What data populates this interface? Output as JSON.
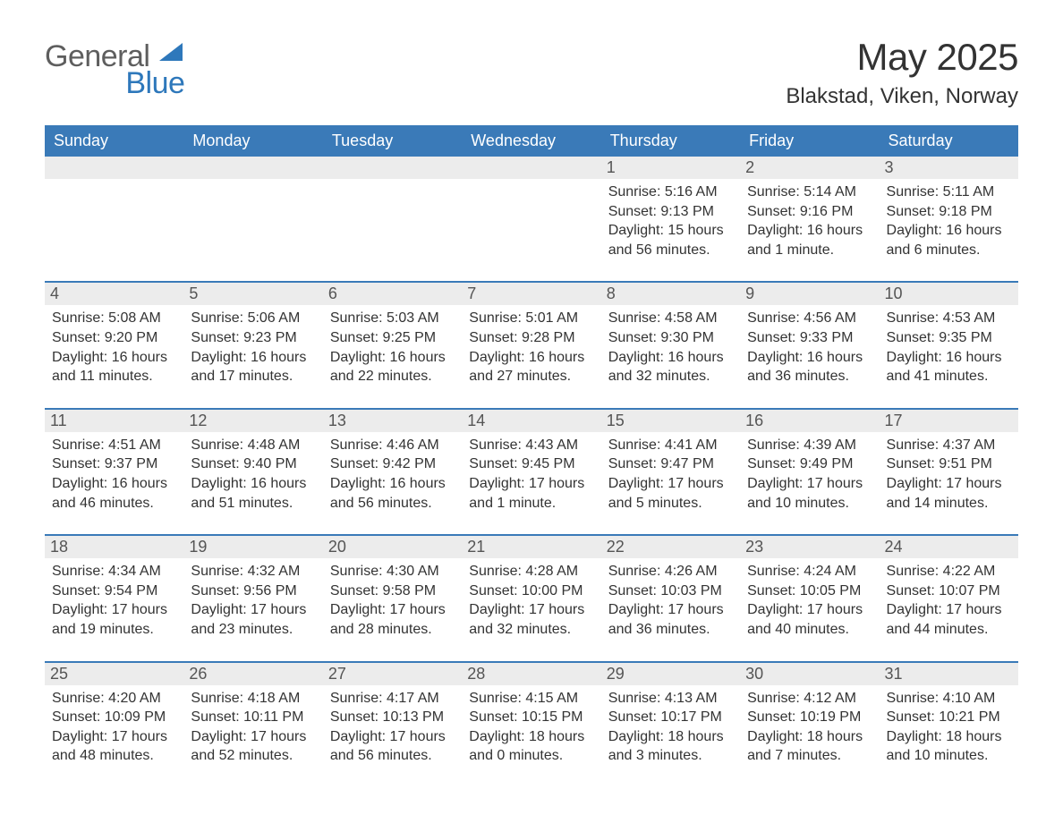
{
  "brand": {
    "word1": "General",
    "word2": "Blue",
    "text_color_general": "#5e5e5e",
    "text_color_blue": "#2e78bb",
    "mark_color": "#2e78bb"
  },
  "title": "May 2025",
  "location": "Blakstad, Viken, Norway",
  "colors": {
    "header_bg": "#3a7ab8",
    "header_text": "#ffffff",
    "daynum_bg": "#ececec",
    "daynum_text": "#555555",
    "body_text": "#333333",
    "week_separator": "#3a7ab8",
    "page_bg": "#ffffff"
  },
  "typography": {
    "month_title_fontsize": 42,
    "location_fontsize": 24,
    "weekday_fontsize": 18,
    "daynum_fontsize": 18,
    "body_fontsize": 16
  },
  "weekdays": [
    "Sunday",
    "Monday",
    "Tuesday",
    "Wednesday",
    "Thursday",
    "Friday",
    "Saturday"
  ],
  "weeks": [
    [
      {
        "empty": true
      },
      {
        "empty": true
      },
      {
        "empty": true
      },
      {
        "empty": true
      },
      {
        "day": "1",
        "lines": [
          "Sunrise: 5:16 AM",
          "Sunset: 9:13 PM",
          "Daylight: 15 hours and 56 minutes."
        ]
      },
      {
        "day": "2",
        "lines": [
          "Sunrise: 5:14 AM",
          "Sunset: 9:16 PM",
          "Daylight: 16 hours and 1 minute."
        ]
      },
      {
        "day": "3",
        "lines": [
          "Sunrise: 5:11 AM",
          "Sunset: 9:18 PM",
          "Daylight: 16 hours and 6 minutes."
        ]
      }
    ],
    [
      {
        "day": "4",
        "lines": [
          "Sunrise: 5:08 AM",
          "Sunset: 9:20 PM",
          "Daylight: 16 hours and 11 minutes."
        ]
      },
      {
        "day": "5",
        "lines": [
          "Sunrise: 5:06 AM",
          "Sunset: 9:23 PM",
          "Daylight: 16 hours and 17 minutes."
        ]
      },
      {
        "day": "6",
        "lines": [
          "Sunrise: 5:03 AM",
          "Sunset: 9:25 PM",
          "Daylight: 16 hours and 22 minutes."
        ]
      },
      {
        "day": "7",
        "lines": [
          "Sunrise: 5:01 AM",
          "Sunset: 9:28 PM",
          "Daylight: 16 hours and 27 minutes."
        ]
      },
      {
        "day": "8",
        "lines": [
          "Sunrise: 4:58 AM",
          "Sunset: 9:30 PM",
          "Daylight: 16 hours and 32 minutes."
        ]
      },
      {
        "day": "9",
        "lines": [
          "Sunrise: 4:56 AM",
          "Sunset: 9:33 PM",
          "Daylight: 16 hours and 36 minutes."
        ]
      },
      {
        "day": "10",
        "lines": [
          "Sunrise: 4:53 AM",
          "Sunset: 9:35 PM",
          "Daylight: 16 hours and 41 minutes."
        ]
      }
    ],
    [
      {
        "day": "11",
        "lines": [
          "Sunrise: 4:51 AM",
          "Sunset: 9:37 PM",
          "Daylight: 16 hours and 46 minutes."
        ]
      },
      {
        "day": "12",
        "lines": [
          "Sunrise: 4:48 AM",
          "Sunset: 9:40 PM",
          "Daylight: 16 hours and 51 minutes."
        ]
      },
      {
        "day": "13",
        "lines": [
          "Sunrise: 4:46 AM",
          "Sunset: 9:42 PM",
          "Daylight: 16 hours and 56 minutes."
        ]
      },
      {
        "day": "14",
        "lines": [
          "Sunrise: 4:43 AM",
          "Sunset: 9:45 PM",
          "Daylight: 17 hours and 1 minute."
        ]
      },
      {
        "day": "15",
        "lines": [
          "Sunrise: 4:41 AM",
          "Sunset: 9:47 PM",
          "Daylight: 17 hours and 5 minutes."
        ]
      },
      {
        "day": "16",
        "lines": [
          "Sunrise: 4:39 AM",
          "Sunset: 9:49 PM",
          "Daylight: 17 hours and 10 minutes."
        ]
      },
      {
        "day": "17",
        "lines": [
          "Sunrise: 4:37 AM",
          "Sunset: 9:51 PM",
          "Daylight: 17 hours and 14 minutes."
        ]
      }
    ],
    [
      {
        "day": "18",
        "lines": [
          "Sunrise: 4:34 AM",
          "Sunset: 9:54 PM",
          "Daylight: 17 hours and 19 minutes."
        ]
      },
      {
        "day": "19",
        "lines": [
          "Sunrise: 4:32 AM",
          "Sunset: 9:56 PM",
          "Daylight: 17 hours and 23 minutes."
        ]
      },
      {
        "day": "20",
        "lines": [
          "Sunrise: 4:30 AM",
          "Sunset: 9:58 PM",
          "Daylight: 17 hours and 28 minutes."
        ]
      },
      {
        "day": "21",
        "lines": [
          "Sunrise: 4:28 AM",
          "Sunset: 10:00 PM",
          "Daylight: 17 hours and 32 minutes."
        ]
      },
      {
        "day": "22",
        "lines": [
          "Sunrise: 4:26 AM",
          "Sunset: 10:03 PM",
          "Daylight: 17 hours and 36 minutes."
        ]
      },
      {
        "day": "23",
        "lines": [
          "Sunrise: 4:24 AM",
          "Sunset: 10:05 PM",
          "Daylight: 17 hours and 40 minutes."
        ]
      },
      {
        "day": "24",
        "lines": [
          "Sunrise: 4:22 AM",
          "Sunset: 10:07 PM",
          "Daylight: 17 hours and 44 minutes."
        ]
      }
    ],
    [
      {
        "day": "25",
        "lines": [
          "Sunrise: 4:20 AM",
          "Sunset: 10:09 PM",
          "Daylight: 17 hours and 48 minutes."
        ]
      },
      {
        "day": "26",
        "lines": [
          "Sunrise: 4:18 AM",
          "Sunset: 10:11 PM",
          "Daylight: 17 hours and 52 minutes."
        ]
      },
      {
        "day": "27",
        "lines": [
          "Sunrise: 4:17 AM",
          "Sunset: 10:13 PM",
          "Daylight: 17 hours and 56 minutes."
        ]
      },
      {
        "day": "28",
        "lines": [
          "Sunrise: 4:15 AM",
          "Sunset: 10:15 PM",
          "Daylight: 18 hours and 0 minutes."
        ]
      },
      {
        "day": "29",
        "lines": [
          "Sunrise: 4:13 AM",
          "Sunset: 10:17 PM",
          "Daylight: 18 hours and 3 minutes."
        ]
      },
      {
        "day": "30",
        "lines": [
          "Sunrise: 4:12 AM",
          "Sunset: 10:19 PM",
          "Daylight: 18 hours and 7 minutes."
        ]
      },
      {
        "day": "31",
        "lines": [
          "Sunrise: 4:10 AM",
          "Sunset: 10:21 PM",
          "Daylight: 18 hours and 10 minutes."
        ]
      }
    ]
  ]
}
